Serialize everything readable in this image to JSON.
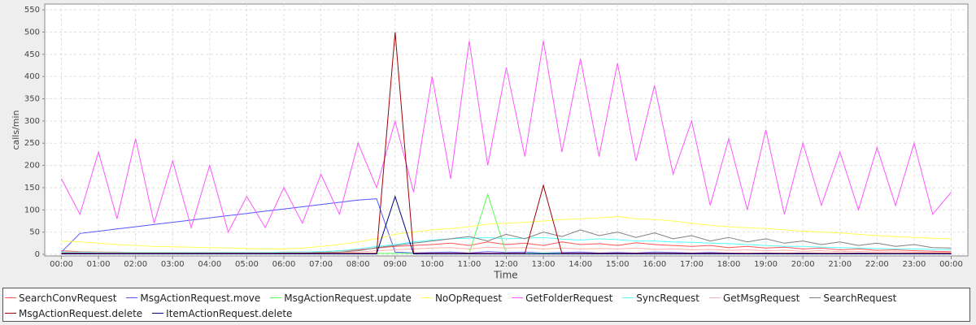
{
  "chart_data": {
    "type": "line",
    "xlabel": "Time",
    "ylabel": "calls/min",
    "grid": true,
    "legend": "bottom",
    "xlim": [
      -0.45,
      24.45
    ],
    "ylim": [
      0,
      563
    ],
    "yticks": [
      0,
      50,
      100,
      150,
      200,
      250,
      300,
      350,
      400,
      450,
      500,
      550
    ],
    "xticks": [
      {
        "value": 0,
        "label": "00:00"
      },
      {
        "value": 1,
        "label": "01:00"
      },
      {
        "value": 2,
        "label": "02:00"
      },
      {
        "value": 3,
        "label": "03:00"
      },
      {
        "value": 4,
        "label": "04:00"
      },
      {
        "value": 5,
        "label": "05:00"
      },
      {
        "value": 6,
        "label": "06:00"
      },
      {
        "value": 7,
        "label": "07:00"
      },
      {
        "value": 8,
        "label": "08:00"
      },
      {
        "value": 9,
        "label": "09:00"
      },
      {
        "value": 10,
        "label": "10:00"
      },
      {
        "value": 11,
        "label": "11:00"
      },
      {
        "value": 12,
        "label": "12:00"
      },
      {
        "value": 13,
        "label": "13:00"
      },
      {
        "value": 14,
        "label": "14:00"
      },
      {
        "value": 15,
        "label": "15:00"
      },
      {
        "value": 16,
        "label": "16:00"
      },
      {
        "value": 17,
        "label": "17:00"
      },
      {
        "value": 18,
        "label": "18:00"
      },
      {
        "value": 19,
        "label": "19:00"
      },
      {
        "value": 20,
        "label": "20:00"
      },
      {
        "value": 21,
        "label": "21:00"
      },
      {
        "value": 22,
        "label": "22:00"
      },
      {
        "value": 23,
        "label": "23:00"
      },
      {
        "value": 24,
        "label": "00:00"
      }
    ],
    "x": [
      0,
      0.5,
      1,
      1.5,
      2,
      2.5,
      3,
      3.5,
      4,
      4.5,
      5,
      5.5,
      6,
      6.5,
      7,
      7.5,
      8,
      8.5,
      9,
      9.5,
      10,
      10.5,
      11,
      11.5,
      12,
      12.5,
      13,
      13.5,
      14,
      14.5,
      15,
      15.5,
      16,
      16.5,
      17,
      17.5,
      18,
      18.5,
      19,
      19.5,
      20,
      20.5,
      21,
      21.5,
      22,
      22.5,
      23,
      23.5,
      24
    ],
    "series": [
      {
        "name": "SearchConvRequest",
        "color": "#ff5555",
        "values": [
          8,
          6,
          5,
          5,
          4,
          4,
          4,
          4,
          4,
          4,
          4,
          4,
          5,
          5,
          6,
          8,
          10,
          14,
          18,
          20,
          22,
          25,
          20,
          28,
          22,
          25,
          20,
          28,
          22,
          24,
          20,
          26,
          22,
          20,
          18,
          20,
          15,
          18,
          14,
          16,
          12,
          14,
          10,
          12,
          9,
          10,
          8,
          7,
          6
        ]
      },
      {
        "name": "MsgActionRequest.move",
        "color": "#5555ff",
        "values": [
          5,
          47,
          52,
          57,
          62,
          67,
          72,
          77,
          82,
          87,
          92,
          97,
          102,
          107,
          112,
          117,
          122,
          125,
          5,
          3,
          4,
          5,
          3,
          6,
          4,
          5,
          3,
          4,
          5,
          3,
          4,
          3,
          5,
          4,
          3,
          4,
          3,
          2,
          3,
          2,
          3,
          2,
          2,
          3,
          2,
          2,
          2,
          2,
          2
        ]
      },
      {
        "name": "MsgActionRequest.update",
        "color": "#55ff55",
        "values": [
          2,
          2,
          2,
          2,
          2,
          2,
          2,
          2,
          2,
          2,
          2,
          2,
          2,
          2,
          2,
          2,
          2,
          2,
          2,
          2,
          2,
          2,
          2,
          135,
          2,
          2,
          2,
          2,
          2,
          2,
          2,
          2,
          2,
          2,
          2,
          2,
          2,
          2,
          2,
          2,
          2,
          2,
          2,
          2,
          2,
          2,
          2,
          2,
          2
        ]
      },
      {
        "name": "NoOpRequest",
        "color": "#ffff55",
        "values": [
          30,
          28,
          25,
          22,
          20,
          18,
          17,
          16,
          15,
          14,
          13,
          12,
          12,
          14,
          18,
          22,
          28,
          35,
          45,
          50,
          55,
          58,
          62,
          68,
          70,
          72,
          75,
          78,
          80,
          82,
          85,
          80,
          78,
          75,
          70,
          65,
          62,
          60,
          58,
          55,
          52,
          50,
          48,
          45,
          42,
          40,
          38,
          36,
          35
        ]
      },
      {
        "name": "GetFolderRequest",
        "color": "#ff55ff",
        "values": [
          170,
          90,
          230,
          80,
          260,
          70,
          210,
          60,
          200,
          50,
          130,
          60,
          150,
          70,
          180,
          90,
          250,
          150,
          300,
          140,
          400,
          170,
          480,
          200,
          420,
          220,
          480,
          230,
          440,
          220,
          430,
          210,
          380,
          180,
          300,
          110,
          260,
          100,
          280,
          90,
          250,
          110,
          230,
          100,
          240,
          110,
          250,
          90,
          140
        ]
      },
      {
        "name": "SyncRequest",
        "color": "#55ffff",
        "values": [
          5,
          5,
          4,
          4,
          4,
          4,
          4,
          4,
          4,
          4,
          4,
          4,
          5,
          5,
          6,
          8,
          12,
          18,
          22,
          28,
          32,
          35,
          36,
          38,
          35,
          36,
          38,
          34,
          32,
          35,
          33,
          30,
          30,
          28,
          27,
          25,
          24,
          22,
          20,
          18,
          18,
          16,
          15,
          14,
          13,
          12,
          12,
          11,
          10
        ]
      },
      {
        "name": "GetMsgRequest",
        "color": "#ffafaf",
        "values": [
          3,
          3,
          2,
          2,
          2,
          2,
          2,
          2,
          2,
          2,
          2,
          2,
          2,
          3,
          3,
          4,
          5,
          8,
          10,
          12,
          14,
          15,
          12,
          16,
          14,
          15,
          12,
          14,
          12,
          13,
          12,
          14,
          11,
          12,
          10,
          11,
          9,
          10,
          8,
          9,
          7,
          8,
          6,
          7,
          5,
          6,
          5,
          4,
          4
        ]
      },
      {
        "name": "SearchRequest",
        "color": "#808080",
        "values": [
          3,
          3,
          2,
          2,
          2,
          2,
          2,
          2,
          2,
          2,
          2,
          2,
          3,
          3,
          4,
          5,
          8,
          15,
          20,
          25,
          30,
          35,
          40,
          30,
          45,
          35,
          50,
          40,
          55,
          42,
          50,
          38,
          48,
          35,
          42,
          30,
          38,
          28,
          35,
          25,
          30,
          22,
          28,
          20,
          25,
          18,
          22,
          15,
          14
        ]
      },
      {
        "name": "MsgActionRequest.delete",
        "color": "#a00000",
        "values": [
          2,
          2,
          2,
          2,
          2,
          2,
          2,
          2,
          2,
          2,
          2,
          2,
          2,
          2,
          2,
          2,
          2,
          2,
          500,
          2,
          2,
          2,
          2,
          2,
          2,
          2,
          155,
          2,
          2,
          2,
          2,
          2,
          2,
          2,
          2,
          2,
          2,
          2,
          2,
          2,
          2,
          2,
          2,
          2,
          2,
          2,
          2,
          2,
          2
        ]
      },
      {
        "name": "ItemActionRequest.delete",
        "color": "#000080",
        "values": [
          1,
          1,
          1,
          1,
          1,
          1,
          1,
          1,
          1,
          1,
          1,
          1,
          1,
          1,
          1,
          1,
          1,
          1,
          130,
          1,
          1,
          1,
          1,
          1,
          1,
          1,
          1,
          1,
          1,
          1,
          1,
          1,
          1,
          1,
          1,
          1,
          1,
          1,
          1,
          1,
          1,
          1,
          1,
          1,
          1,
          1,
          1,
          1,
          1
        ]
      }
    ]
  }
}
